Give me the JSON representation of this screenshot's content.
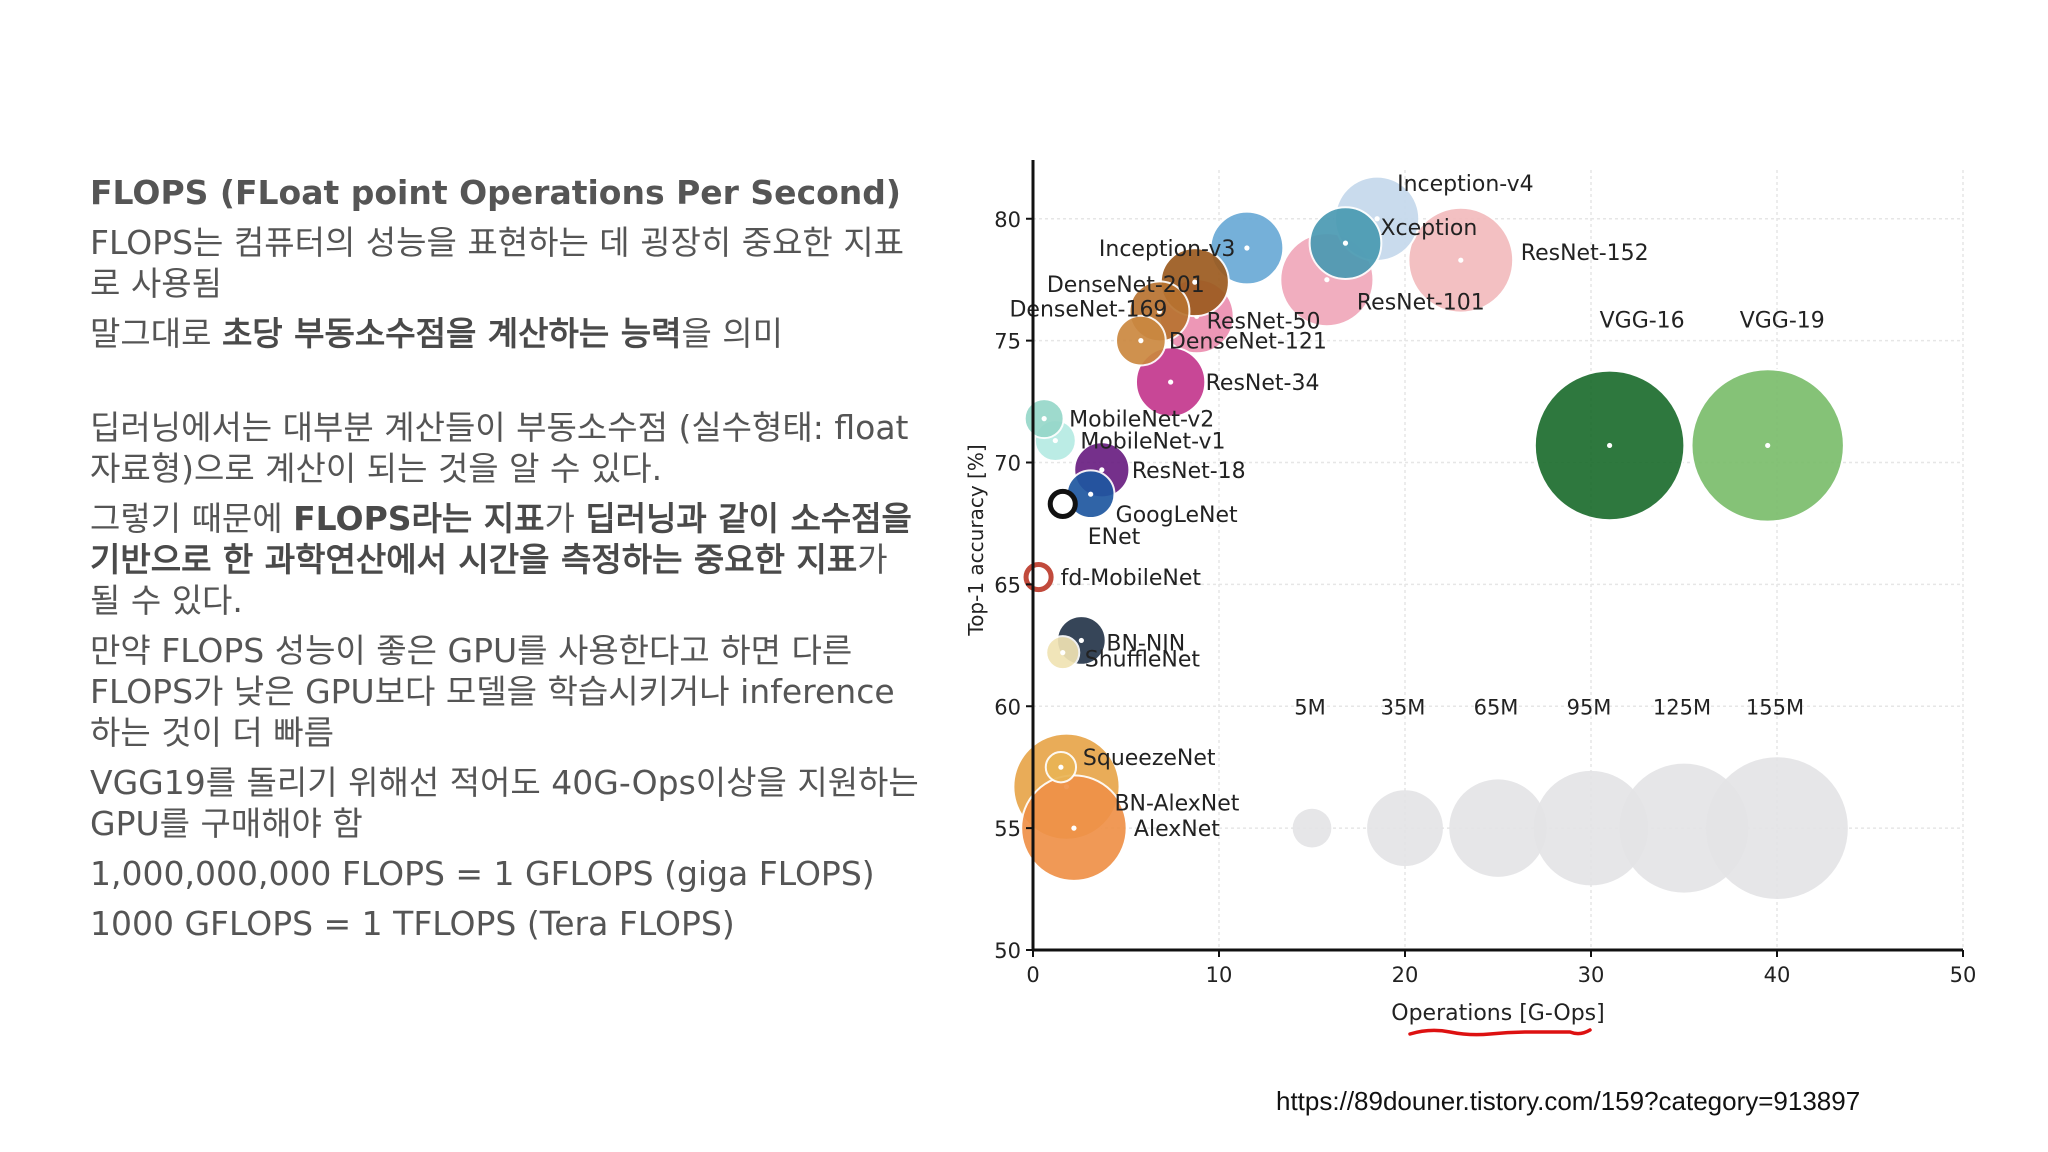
{
  "slide": {
    "title": "FLOPS (FLoat point Operations Per Second)",
    "source_url": "https://89douner.tistory.com/159?category=913897"
  },
  "paragraphs": [
    [
      {
        "t": "FLOPS는 컴퓨터의 성능을 표현하는 데 굉장히 중요한 지표로 사용됨"
      }
    ],
    [
      {
        "t": "말그대로 "
      },
      {
        "t": "초당 부동소수점을 계산하는 능력",
        "b": true
      },
      {
        "t": "을 의미"
      }
    ],
    [
      {
        "t": "딥러닝에서는 대부분 계산들이 부동소수점 (실수형태: float 자료형)으로 계산이 되는 것을 알 수 있다."
      }
    ],
    [
      {
        "t": "그렇기 때문에 "
      },
      {
        "t": "FLOPS라는 지표",
        "b": true
      },
      {
        "t": "가 "
      },
      {
        "t": "딥러닝과 같이 소수점을 기반으로 한 과학연산에서 시간을 측정하는 중요한 지표",
        "b": true
      },
      {
        "t": "가 될 수 있다."
      }
    ],
    [
      {
        "t": "만약 FLOPS 성능이 좋은 GPU를 사용한다고 하면 다른 FLOPS가 낮은 GPU보다 모델을 학습시키거나 inference하는 것이 더 빠름"
      }
    ],
    [
      {
        "t": "VGG19를 돌리기 위해선 적어도 40G-Ops이상을 지원하는 GPU를 구매해야 함"
      }
    ],
    [
      {
        "t": "1,000,000,000 FLOPS = 1 GFLOPS (giga FLOPS)"
      }
    ],
    [
      {
        "t": "1000 GFLOPS = 1 TFLOPS (Tera FLOPS)"
      }
    ]
  ],
  "chart_data": {
    "type": "scatter",
    "xlabel": "Operations [G-Ops]",
    "ylabel": "Top-1 accuracy [%]",
    "xlim": [
      0,
      50
    ],
    "ylim": [
      50,
      82
    ],
    "xticks": [
      0,
      10,
      20,
      30,
      40,
      50
    ],
    "yticks": [
      50,
      55,
      60,
      65,
      70,
      75,
      80
    ],
    "grid": true,
    "points": [
      {
        "name": "Inception-v4",
        "x": 18.5,
        "y": 80.0,
        "params_m": 35,
        "color": "#c5d9ec"
      },
      {
        "name": "Xception",
        "x": 16.8,
        "y": 79.0,
        "params_m": 23,
        "color": "#4a9ab2"
      },
      {
        "name": "ResNet-101",
        "x": 15.8,
        "y": 77.5,
        "params_m": 45,
        "color": "#f0a8ba"
      },
      {
        "name": "ResNet-152",
        "x": 23.0,
        "y": 78.3,
        "params_m": 60,
        "color": "#f3bbbd"
      },
      {
        "name": "Inception-v3",
        "x": 11.5,
        "y": 78.8,
        "params_m": 24,
        "color": "#6aaad6"
      },
      {
        "name": "DenseNet-201",
        "x": 8.7,
        "y": 77.4,
        "params_m": 20,
        "color": "#9c5b1f"
      },
      {
        "name": "DenseNet-169",
        "x": 6.8,
        "y": 76.2,
        "params_m": 14,
        "color": "#b87330"
      },
      {
        "name": "DenseNet-121",
        "x": 5.8,
        "y": 75.0,
        "params_m": 8,
        "color": "#cb8840"
      },
      {
        "name": "ResNet-50",
        "x": 8.8,
        "y": 76.0,
        "params_m": 25,
        "color": "#ec8fb0"
      },
      {
        "name": "ResNet-34",
        "x": 7.4,
        "y": 73.3,
        "params_m": 21,
        "color": "#c4388e"
      },
      {
        "name": "MobileNet-v2",
        "x": 0.6,
        "y": 71.8,
        "params_m": 3.5,
        "color": "#96d7c9"
      },
      {
        "name": "MobileNet-v1",
        "x": 1.2,
        "y": 70.9,
        "params_m": 4.2,
        "color": "#b6ebe3"
      },
      {
        "name": "ResNet-18",
        "x": 3.7,
        "y": 69.7,
        "params_m": 11,
        "color": "#6a1f82"
      },
      {
        "name": "GoogLeNet",
        "x": 3.1,
        "y": 68.7,
        "params_m": 7,
        "color": "#1f57a0"
      },
      {
        "name": "ENet",
        "x": 1.6,
        "y": 68.3,
        "params_m": 0.4,
        "color": "#111111"
      },
      {
        "name": "fd-MobileNet",
        "x": 0.3,
        "y": 65.3,
        "params_m": 0.4,
        "color": "#c14a3c"
      },
      {
        "name": "BN-NIN",
        "x": 2.6,
        "y": 62.7,
        "params_m": 7.5,
        "color": "#26364a"
      },
      {
        "name": "ShuffleNet",
        "x": 1.6,
        "y": 62.2,
        "params_m": 1.8,
        "color": "#f0e3b4"
      },
      {
        "name": "VGG-16",
        "x": 31.0,
        "y": 70.7,
        "params_m": 138,
        "color": "#1d6d2e"
      },
      {
        "name": "VGG-19",
        "x": 39.5,
        "y": 70.7,
        "params_m": 144,
        "color": "#7bbd6c"
      },
      {
        "name": "SqueezeNet",
        "x": 1.5,
        "y": 57.5,
        "params_m": 1.2,
        "color": "#e9b455"
      },
      {
        "name": "BN-AlexNet",
        "x": 1.8,
        "y": 56.7,
        "params_m": 62,
        "color": "#e8a64a"
      },
      {
        "name": "AlexNet",
        "x": 2.2,
        "y": 55.0,
        "params_m": 61,
        "color": "#ef9148"
      }
    ],
    "size_legend": {
      "labels": [
        "5M",
        "35M",
        "65M",
        "95M",
        "125M",
        "155M"
      ],
      "values_m": [
        5,
        35,
        65,
        95,
        125,
        155
      ],
      "x": [
        15.0,
        20.0,
        25.0,
        30.0,
        35.0,
        40.0
      ],
      "y": 55.0,
      "label_y": 60.0,
      "color": "#e3e3e6"
    }
  }
}
